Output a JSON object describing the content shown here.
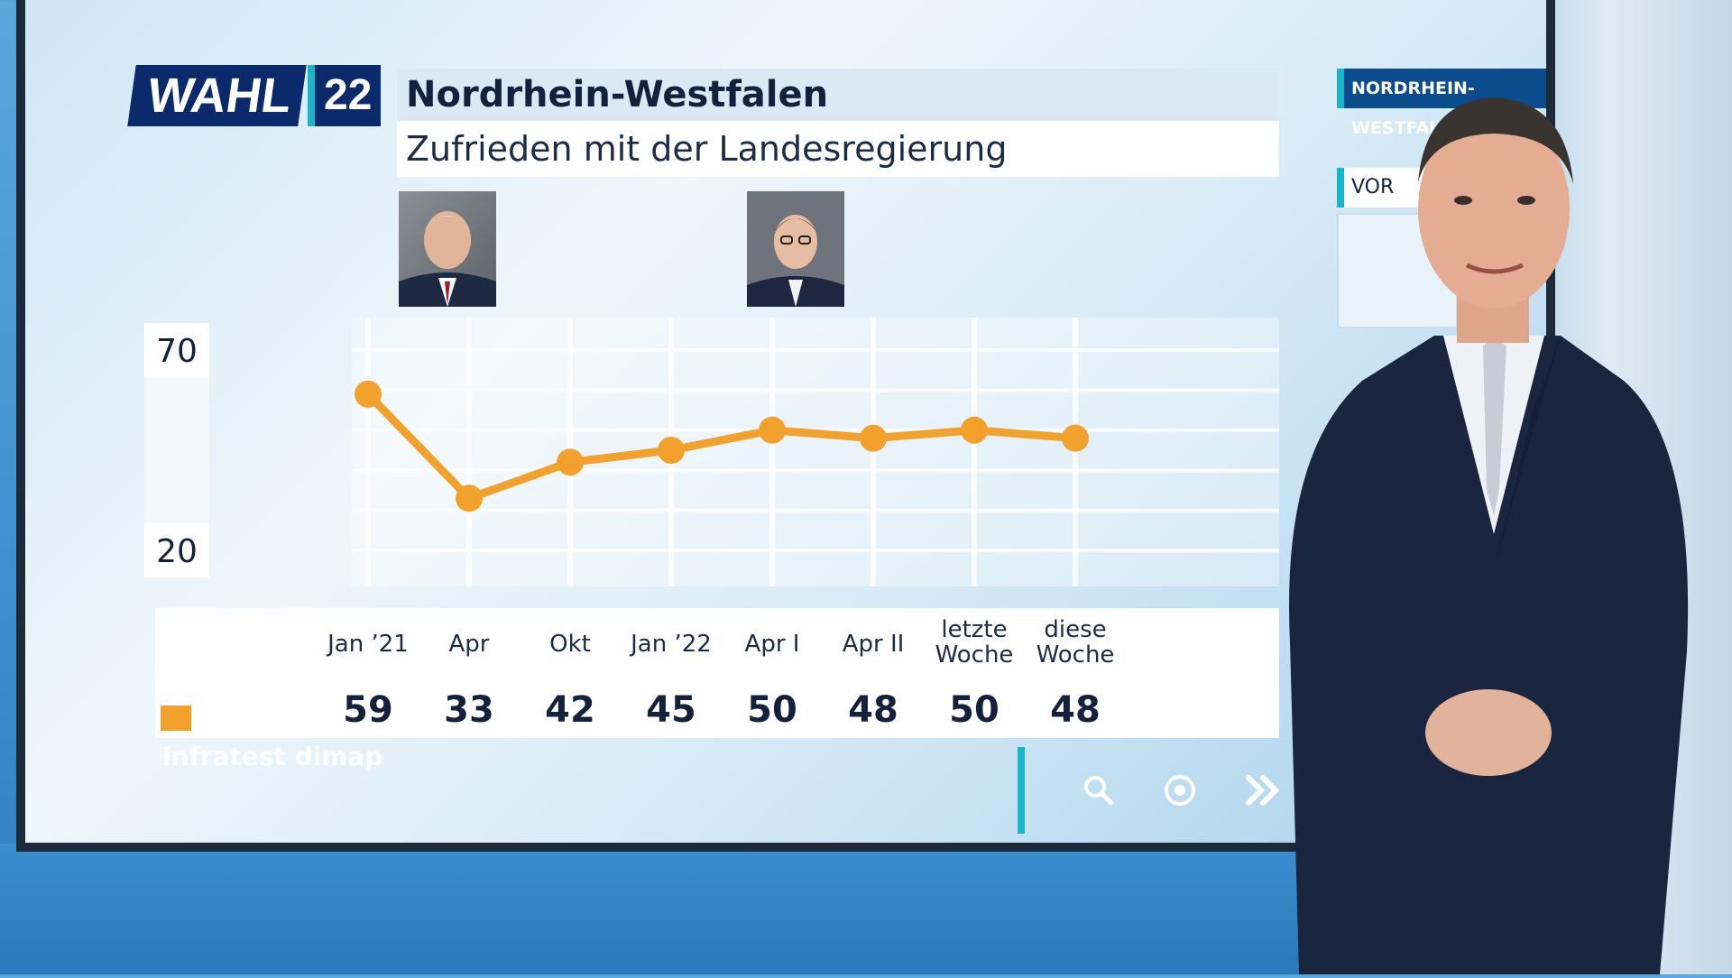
{
  "header": {
    "logo_word": "WAHL",
    "logo_number": "22",
    "title": "Nordrhein-Westfalen",
    "subtitle": "Zufrieden mit der Landesregierung"
  },
  "side_panel": {
    "tag_label": "NORDRHEIN-WESTFALEN",
    "tag2_label": "VOR"
  },
  "chart_data": {
    "type": "line",
    "title": "Zufrieden mit der Landesregierung",
    "categories": [
      "Jan ’21",
      "Apr",
      "Okt",
      "Jan ’22",
      "Apr I",
      "Apr II",
      "letzte Woche",
      "diese Woche"
    ],
    "category_lines": [
      [
        "Jan ’21"
      ],
      [
        "Apr"
      ],
      [
        "Okt"
      ],
      [
        "Jan ’22"
      ],
      [
        "Apr I"
      ],
      [
        "Apr II"
      ],
      [
        "letzte",
        "Woche"
      ],
      [
        "diese",
        "Woche"
      ]
    ],
    "values": [
      59,
      33,
      42,
      45,
      50,
      48,
      50,
      48
    ],
    "ylim": [
      20,
      70
    ],
    "y_ticks": [
      "70",
      "20"
    ],
    "grid": true,
    "color": "#f2a12c"
  },
  "source": "infratest dimap",
  "toolbar": {
    "icons": [
      "search-icon",
      "target-icon",
      "forward-icon"
    ]
  }
}
